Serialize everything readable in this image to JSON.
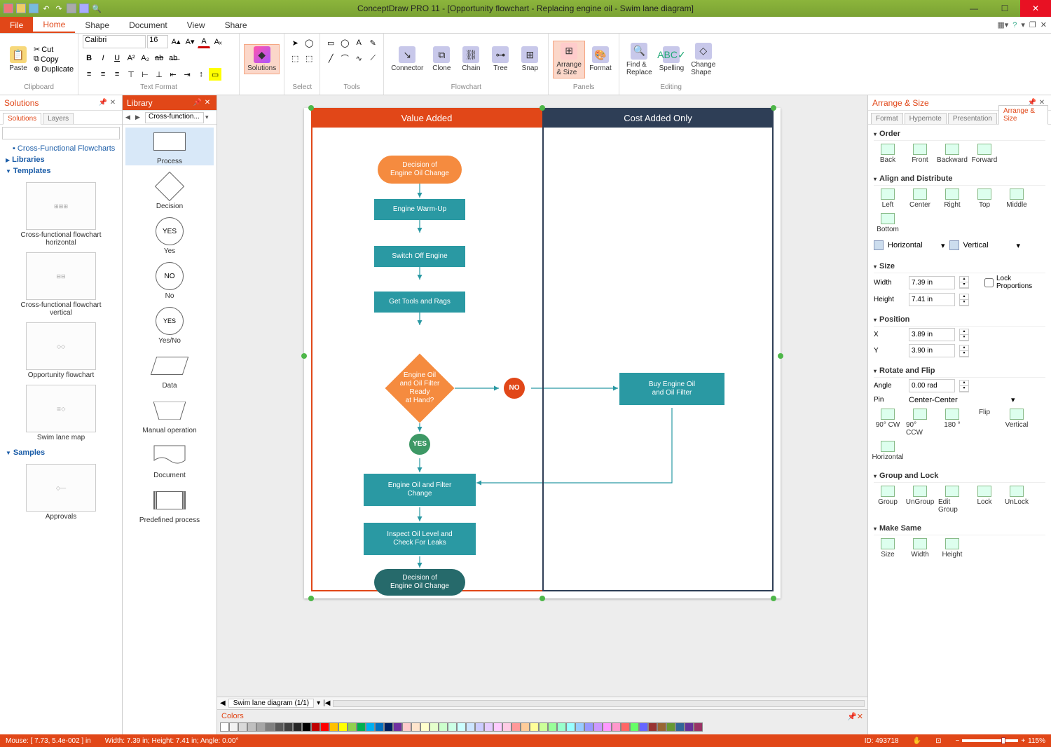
{
  "app": {
    "title": "ConceptDraw PRO 11 - [Opportunity flowchart - Replacing engine oil - Swim lane diagram]"
  },
  "menu": {
    "file": "File",
    "tabs": [
      "Home",
      "Shape",
      "Document",
      "View",
      "Share"
    ],
    "active": "Home"
  },
  "ribbon": {
    "clipboard": {
      "paste": "Paste",
      "cut": "Cut",
      "copy": "Copy",
      "dup": "Duplicate",
      "group": "Clipboard"
    },
    "font": {
      "name": "Calibri",
      "size": "16",
      "group": "Text Format"
    },
    "solutions": {
      "label": "Solutions"
    },
    "select": {
      "label": "Select"
    },
    "tools": {
      "label": "Tools"
    },
    "flowchart": {
      "connector": "Connector",
      "clone": "Clone",
      "chain": "Chain",
      "tree": "Tree",
      "snap": "Snap",
      "group": "Flowchart"
    },
    "panels": {
      "arrange": "Arrange\n& Size",
      "format": "Format",
      "group": "Panels"
    },
    "editing": {
      "find": "Find &\nReplace",
      "spelling": "Spelling",
      "shape": "Change\nShape",
      "group": "Editing"
    }
  },
  "solutions_panel": {
    "title": "Solutions",
    "tabs": [
      "Solutions",
      "Layers"
    ],
    "active_tab": "Solutions",
    "root": "Cross-Functional Flowcharts",
    "libraries": "Libraries",
    "templates_hdr": "Templates",
    "templates": [
      "Cross-functional flowchart horizontal",
      "Cross-functional flowchart vertical",
      "Opportunity flowchart",
      "Swim lane map"
    ],
    "samples_hdr": "Samples",
    "sample": "Approvals"
  },
  "library_panel": {
    "title": "Library",
    "current": "Cross-function...",
    "shapes": [
      "Process",
      "Decision",
      "Yes",
      "No",
      "Yes/No",
      "Data",
      "Manual operation",
      "Document",
      "Predefined process"
    ]
  },
  "flowchart": {
    "lanes": {
      "left": "Value Added",
      "right": "Cost Added Only"
    },
    "colors": {
      "lane_left_hdr": "#e14718",
      "lane_right_hdr": "#2e3e56",
      "terminator_start": "#f58b3f",
      "terminator_end": "#266a6b",
      "process": "#2a99a3",
      "decision": "#f58b3f",
      "no_node": "#e14718",
      "yes_node": "#3d9865",
      "proc2": "#2a99a3",
      "arrow": "#2a99a3"
    },
    "nodes": {
      "start": "Decision of\nEngine Oil Change",
      "warmup": "Engine Warm-Up",
      "switchoff": "Switch Off Engine",
      "tools": "Get Tools and Rags",
      "decision": "Engine Oil\nand Oil Filter Ready\nat Hand?",
      "no": "NO",
      "yes": "YES",
      "buy": "Buy Engine Oil\nand Oil Filter",
      "filter": "Engine Oil and Filter\nChange",
      "inspect": "Inspect Oil Level and\nCheck For Leaks",
      "end": "Decision of\nEngine Oil Change"
    }
  },
  "right_panel": {
    "title": "Arrange & Size",
    "tabs": [
      "Format",
      "Hypernote",
      "Presentation",
      "Arrange & Size"
    ],
    "active": "Arrange & Size",
    "order": {
      "label": "Order",
      "items": [
        "Back",
        "Front",
        "Backward",
        "Forward"
      ]
    },
    "align": {
      "label": "Align and Distribute",
      "items": [
        "Left",
        "Center",
        "Right",
        "Top",
        "Middle",
        "Bottom"
      ],
      "horiz": "Horizontal",
      "vert": "Vertical"
    },
    "size": {
      "label": "Size",
      "width_l": "Width",
      "width_v": "7.39 in",
      "height_l": "Height",
      "height_v": "7.41 in",
      "lock": "Lock Proportions"
    },
    "pos": {
      "label": "Position",
      "x_l": "X",
      "x_v": "3.89 in",
      "y_l": "Y",
      "y_v": "3.90 in"
    },
    "rotate": {
      "label": "Rotate and Flip",
      "angle_l": "Angle",
      "angle_v": "0.00 rad",
      "pin_l": "Pin",
      "pin_v": "Center-Center",
      "items": [
        "90° CW",
        "90° CCW",
        "180 °",
        "Flip",
        "Vertical",
        "Horizontal"
      ]
    },
    "grouplock": {
      "label": "Group and Lock",
      "items": [
        "Group",
        "UnGroup",
        "Edit Group",
        "Lock",
        "UnLock"
      ]
    },
    "makesame": {
      "label": "Make Same",
      "items": [
        "Size",
        "Width",
        "Height"
      ]
    }
  },
  "status": {
    "mouse": "Mouse: [ 7.73, 5.4e-002 ] in",
    "dims": "Width: 7.39 in;  Height: 7.41 in;  Angle: 0.00°",
    "id": "ID: 493718",
    "zoom": "115%"
  },
  "colors_panel": {
    "title": "Colors"
  },
  "canvas_tab": "Swim lane diagram (1/1)",
  "palette": [
    "#ffffff",
    "#f2f2f2",
    "#d9d9d9",
    "#bfbfbf",
    "#a6a6a6",
    "#808080",
    "#595959",
    "#404040",
    "#262626",
    "#000000",
    "#c00000",
    "#ff0000",
    "#ffc000",
    "#ffff00",
    "#92d050",
    "#00b050",
    "#00b0f0",
    "#0070c0",
    "#002060",
    "#7030a0",
    "#ffcccc",
    "#ffe5cc",
    "#ffffcc",
    "#e5ffcc",
    "#ccffcc",
    "#ccffe5",
    "#ccffff",
    "#cce5ff",
    "#ccccff",
    "#e5ccff",
    "#ffccff",
    "#ffcce5",
    "#ff9999",
    "#ffcc99",
    "#ffff99",
    "#ccff99",
    "#99ff99",
    "#99ffcc",
    "#99ffff",
    "#99ccff",
    "#9999ff",
    "#cc99ff",
    "#ff99ff",
    "#ff99cc",
    "#ff6666",
    "#66ff66",
    "#6666ff",
    "#993333",
    "#996633",
    "#669933",
    "#336699",
    "#663399",
    "#993366"
  ]
}
